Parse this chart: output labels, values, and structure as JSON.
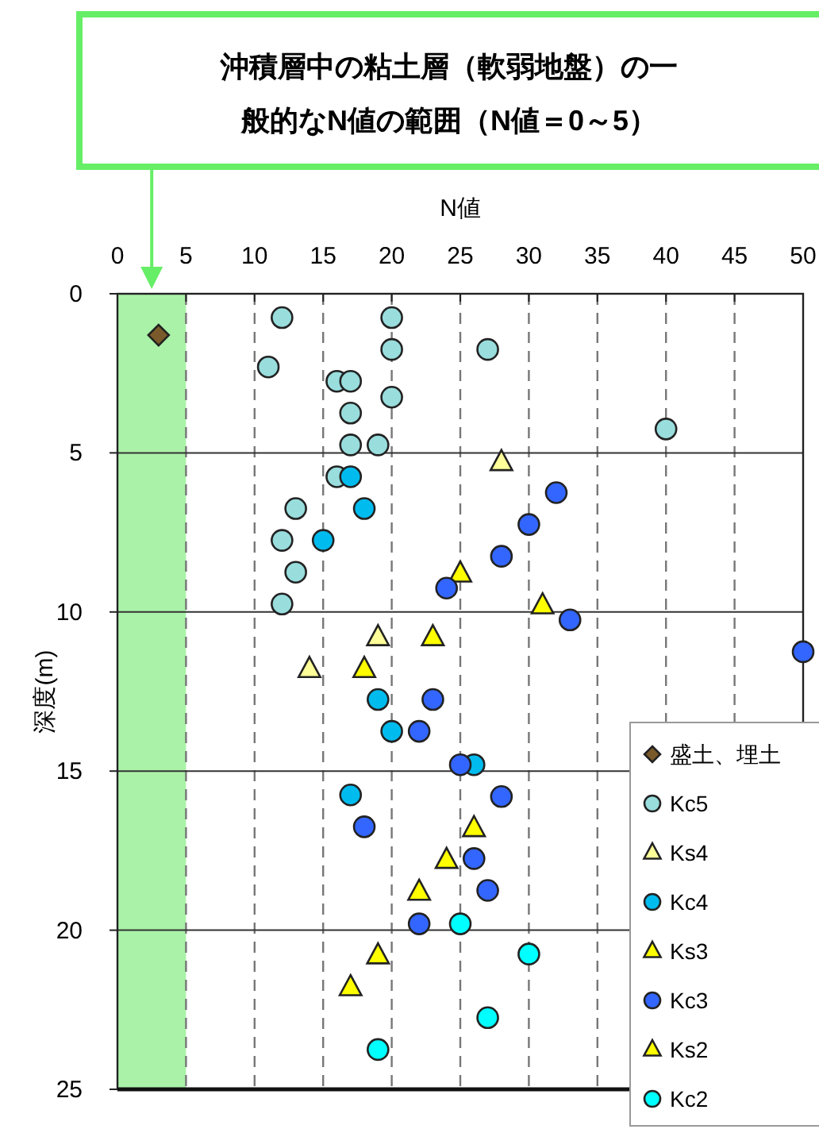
{
  "chart_data": {
    "type": "scatter",
    "title": "沖積層中の粘土層（軟弱地盤）の一般的なN値の範囲（N値＝0～5）",
    "xlabel": "N値",
    "ylabel": "深度(m)",
    "xlim": [
      0,
      50
    ],
    "xticks": [
      0,
      5,
      10,
      15,
      20,
      25,
      30,
      35,
      40,
      45,
      50
    ],
    "ylim": [
      25,
      0
    ],
    "yticks": [
      0,
      5,
      10,
      15,
      20,
      25
    ],
    "grid": true,
    "legend": "bottom right",
    "bands": [
      {
        "axis": "x",
        "from": 0,
        "to": 5,
        "color": "#aaf2a8"
      }
    ],
    "series": [
      {
        "name": "盛土、埋土",
        "color": "#7a5a2a",
        "marker": "diamond",
        "x": [
          3
        ],
        "values": [
          1.3
        ]
      },
      {
        "name": "Kc5",
        "color": "#99dddd",
        "marker": "circle",
        "x": [
          12,
          20,
          20,
          27,
          11,
          16,
          17,
          20,
          17,
          17,
          19,
          40,
          16,
          13,
          12,
          13,
          12
        ],
        "values": [
          0.75,
          0.75,
          1.75,
          1.75,
          2.3,
          2.75,
          2.75,
          3.25,
          3.75,
          4.75,
          4.75,
          4.25,
          5.75,
          6.75,
          7.75,
          8.75,
          9.75
        ]
      },
      {
        "name": "Ks4",
        "color": "#ffff99",
        "marker": "triangle",
        "x": [
          28,
          19,
          14
        ],
        "values": [
          5.3,
          10.8,
          11.8
        ]
      },
      {
        "name": "Kc4",
        "color": "#00bbee",
        "marker": "circle",
        "x": [
          17,
          18,
          15,
          19,
          20,
          26,
          17
        ],
        "values": [
          5.75,
          6.75,
          7.75,
          12.75,
          13.75,
          14.8,
          15.75
        ]
      },
      {
        "name": "Ks3",
        "color": "#ffff00",
        "marker": "triangle",
        "x": [
          25,
          31,
          23,
          18
        ],
        "values": [
          8.8,
          9.8,
          10.8,
          11.8
        ]
      },
      {
        "name": "Kc3",
        "color": "#3366ff",
        "marker": "circle",
        "x": [
          32,
          30,
          28,
          24,
          33,
          50,
          23,
          22,
          25,
          28,
          18,
          26,
          27,
          22
        ],
        "values": [
          6.25,
          7.25,
          8.25,
          9.25,
          10.25,
          11.25,
          12.75,
          13.75,
          14.8,
          15.8,
          16.75,
          17.75,
          18.75,
          19.8
        ]
      },
      {
        "name": "Ks2",
        "color": "#ffff00",
        "marker": "triangle",
        "x": [
          26,
          24,
          22,
          19,
          17
        ],
        "values": [
          16.8,
          17.8,
          18.8,
          20.8,
          21.8
        ]
      },
      {
        "name": "Kc2",
        "color": "#00ffff",
        "marker": "circle",
        "x": [
          25,
          30,
          27,
          19
        ],
        "values": [
          19.8,
          20.75,
          22.75,
          23.75
        ]
      }
    ]
  }
}
